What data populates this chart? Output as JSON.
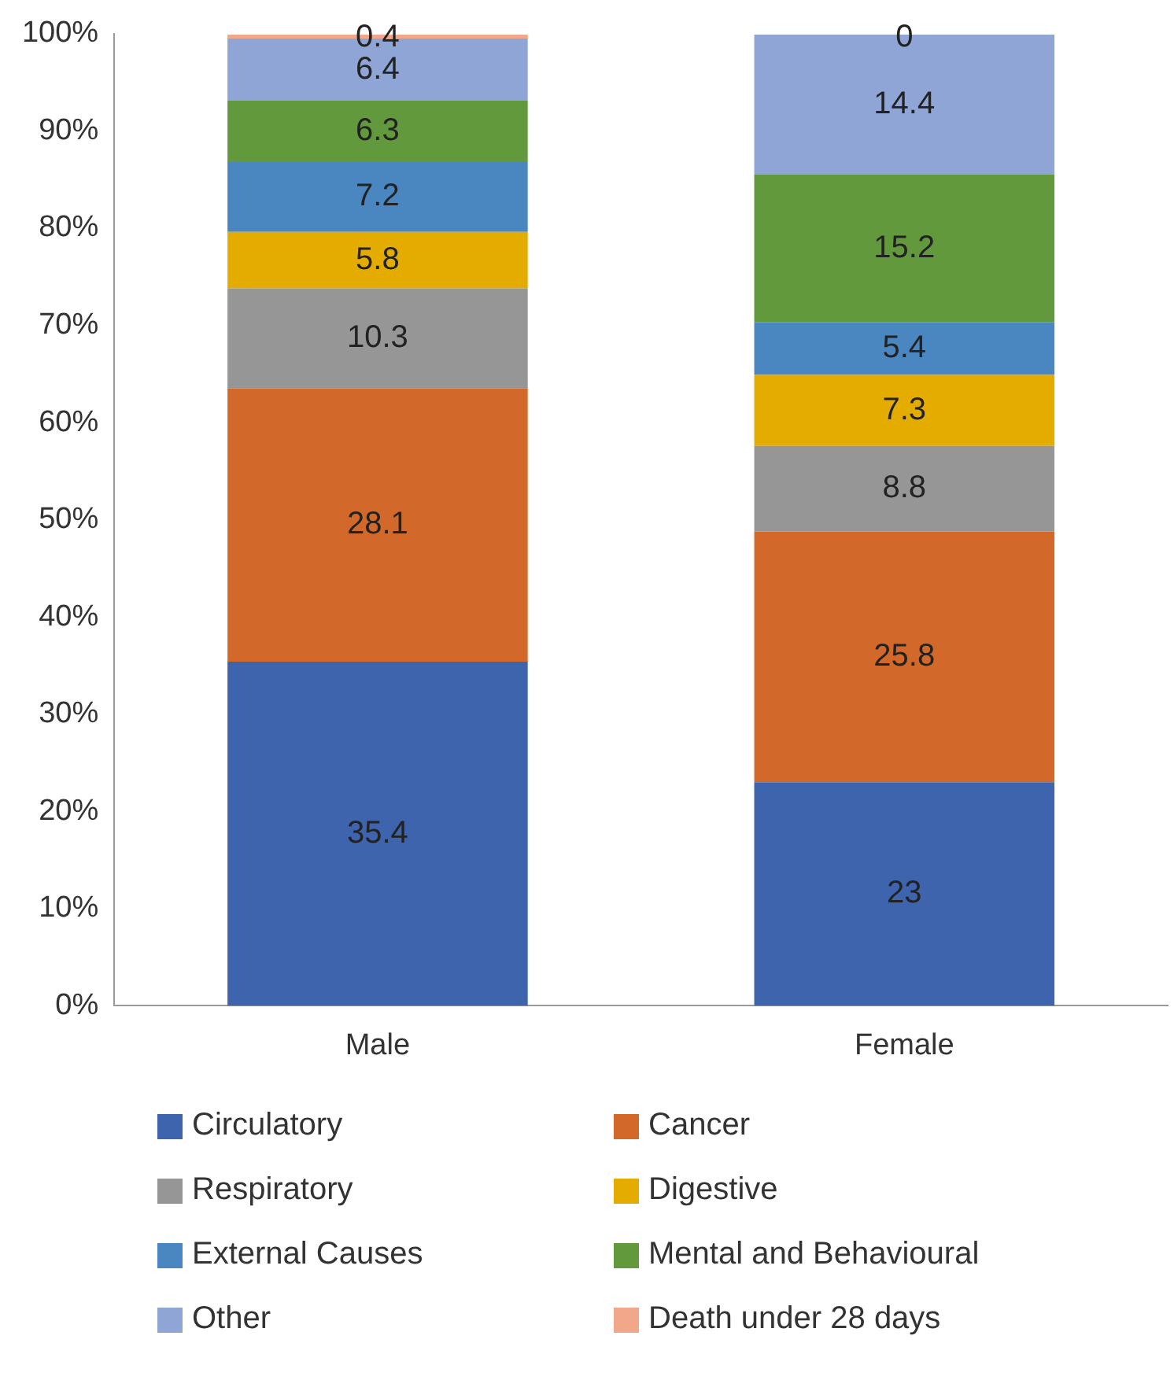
{
  "chart_data": {
    "type": "bar",
    "stacked": true,
    "categories": [
      "Male",
      "Female"
    ],
    "series": [
      {
        "name": "Circulatory",
        "color": "#3d64ad",
        "values": [
          35.4,
          23
        ]
      },
      {
        "name": "Cancer",
        "color": "#d2692a",
        "values": [
          28.1,
          25.8
        ]
      },
      {
        "name": "Respiratory",
        "color": "#969696",
        "values": [
          10.3,
          8.8
        ]
      },
      {
        "name": "Digestive",
        "color": "#e5ac00",
        "values": [
          5.8,
          7.3
        ]
      },
      {
        "name": "External Causes",
        "color": "#4a86c0",
        "values": [
          7.2,
          5.4
        ]
      },
      {
        "name": "Mental and Behavioural",
        "color": "#63993d",
        "values": [
          6.3,
          15.2
        ]
      },
      {
        "name": "Other",
        "color": "#8fa5d6",
        "values": [
          6.4,
          14.4
        ]
      },
      {
        "name": "Death under 28 days",
        "color": "#f2a68a",
        "values": [
          0.4,
          0
        ]
      }
    ],
    "ylim": [
      0,
      100
    ],
    "yticks": [
      {
        "value": 0,
        "label": "0%"
      },
      {
        "value": 10,
        "label": "10%"
      },
      {
        "value": 20,
        "label": "20%"
      },
      {
        "value": 30,
        "label": "30%"
      },
      {
        "value": 40,
        "label": "40%"
      },
      {
        "value": 50,
        "label": "50%"
      },
      {
        "value": 60,
        "label": "60%"
      },
      {
        "value": 70,
        "label": "70%"
      },
      {
        "value": 80,
        "label": "80%"
      },
      {
        "value": 90,
        "label": "90%"
      },
      {
        "value": 100,
        "label": "100%"
      }
    ],
    "data_labels": true,
    "grid": false,
    "legend": "bottom"
  }
}
